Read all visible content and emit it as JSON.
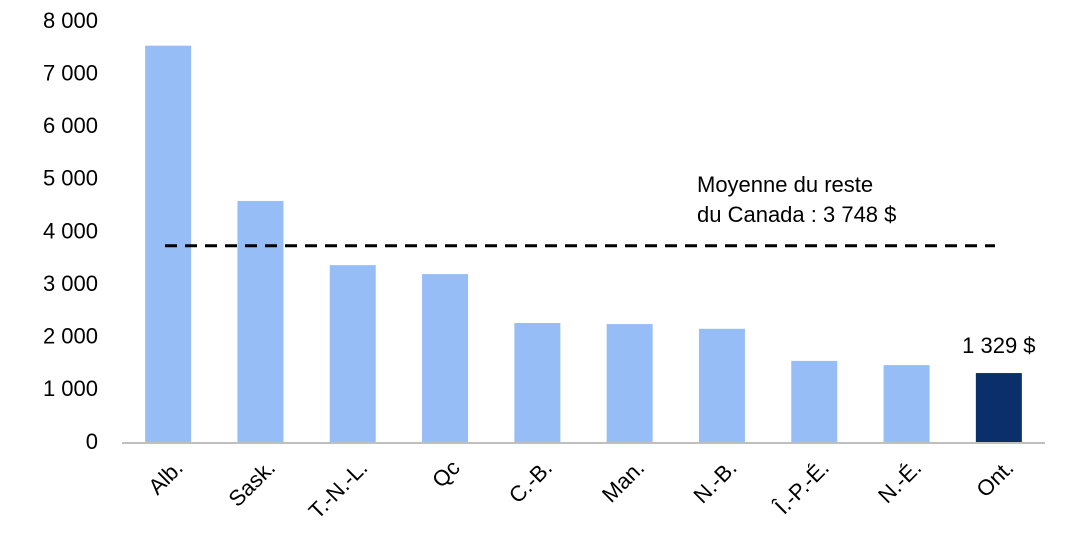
{
  "chart_data": {
    "type": "bar",
    "categories": [
      "Alb.",
      "Sask.",
      "T.-N.-L.",
      "Qc",
      "C.-B.",
      "Man.",
      "N.-B.",
      "Î.-P.-É.",
      "N.-É.",
      "Ont."
    ],
    "values": [
      7550,
      4600,
      3380,
      3210,
      2280,
      2260,
      2170,
      1560,
      1480,
      1329
    ],
    "value_labels": [
      null,
      null,
      null,
      null,
      null,
      null,
      null,
      null,
      null,
      "1 329 $"
    ],
    "colors": [
      "#97bdf6",
      "#97bdf6",
      "#97bdf6",
      "#97bdf6",
      "#97bdf6",
      "#97bdf6",
      "#97bdf6",
      "#97bdf6",
      "#97bdf6",
      "#0b2f6a"
    ],
    "ylim": [
      0,
      8000
    ],
    "yticks": [
      {
        "value": 0,
        "label": "0"
      },
      {
        "value": 1000,
        "label": "1 000"
      },
      {
        "value": 2000,
        "label": "2 000"
      },
      {
        "value": 3000,
        "label": "3 000"
      },
      {
        "value": 4000,
        "label": "4 000"
      },
      {
        "value": 5000,
        "label": "5 000"
      },
      {
        "value": 6000,
        "label": "6 000"
      },
      {
        "value": 7000,
        "label": "7 000"
      },
      {
        "value": 8000,
        "label": "8 000"
      }
    ],
    "grid": false,
    "reference_line": {
      "value": 3748,
      "label": [
        "Moyenne du reste",
        "du Canada : 3 748 $"
      ]
    }
  }
}
